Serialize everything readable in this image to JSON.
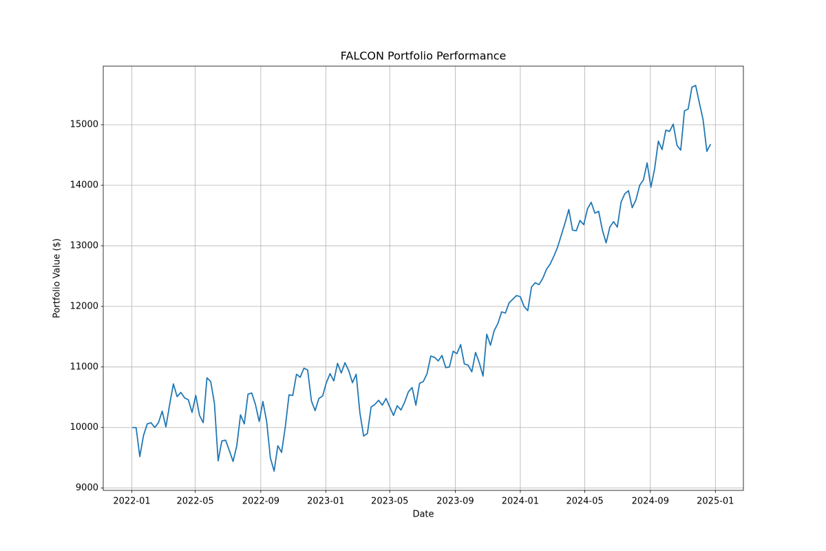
{
  "chart_data": {
    "type": "line",
    "title": "FALCON Portfolio Performance",
    "x_label": "Date",
    "y_label": "Portfolio Value ($)",
    "series": [
      {
        "color": "#1f77b4",
        "values": [
          10000,
          10000,
          9520,
          9870,
          10060,
          10080,
          10000,
          10080,
          10270,
          10010,
          10380,
          10720,
          10510,
          10580,
          10490,
          10460,
          10250,
          10530,
          10200,
          10080,
          10820,
          10760,
          10400,
          9450,
          9780,
          9790,
          9620,
          9440,
          9700,
          10210,
          10060,
          10550,
          10570,
          10380,
          10100,
          10430,
          10100,
          9500,
          9280,
          9700,
          9590,
          10010,
          10540,
          10530,
          10880,
          10830,
          10980,
          10950,
          10440,
          10280,
          10480,
          10520,
          10740,
          10890,
          10770,
          11060,
          10900,
          11070,
          10940,
          10740,
          10880,
          10240,
          9860,
          9900,
          10340,
          10380,
          10450,
          10370,
          10480,
          10340,
          10200,
          10360,
          10290,
          10420,
          10590,
          10660,
          10370,
          10730,
          10760,
          10890,
          11180,
          11160,
          11100,
          11190,
          10990,
          11000,
          11260,
          11220,
          11370,
          11050,
          11030,
          10920,
          11240,
          11070,
          10850,
          11540,
          11360,
          11600,
          11720,
          11910,
          11890,
          12060,
          12120,
          12180,
          12160,
          12000,
          11930,
          12320,
          12390,
          12360,
          12460,
          12610,
          12700,
          12830,
          12980,
          13180,
          13380,
          13600,
          13260,
          13250,
          13420,
          13350,
          13610,
          13720,
          13540,
          13570,
          13260,
          13050,
          13310,
          13400,
          13310,
          13720,
          13860,
          13910,
          13630,
          13760,
          14000,
          14090,
          14370,
          13970,
          14270,
          14730,
          14590,
          14910,
          14890,
          15010,
          14660,
          14580,
          15230,
          15260,
          15620,
          15650,
          15360,
          15080,
          14560,
          14680
        ]
      }
    ],
    "xlim": [
      -7.8,
      163.8
    ],
    "xticks": [
      {
        "value": -0.14,
        "label": "2022-01"
      },
      {
        "value": 16.86,
        "label": "2022-05"
      },
      {
        "value": 34.43,
        "label": "2022-09"
      },
      {
        "value": 51.86,
        "label": "2023-01"
      },
      {
        "value": 69,
        "label": "2023-05"
      },
      {
        "value": 86.57,
        "label": "2023-09"
      },
      {
        "value": 104,
        "label": "2024-01"
      },
      {
        "value": 121.29,
        "label": "2024-05"
      },
      {
        "value": 138.86,
        "label": "2024-09"
      },
      {
        "value": 156.29,
        "label": "2025-01"
      }
    ],
    "ylim": [
      8962,
      15968
    ],
    "yticks": [
      9000,
      10000,
      11000,
      12000,
      13000,
      14000,
      15000
    ],
    "grid": true
  }
}
